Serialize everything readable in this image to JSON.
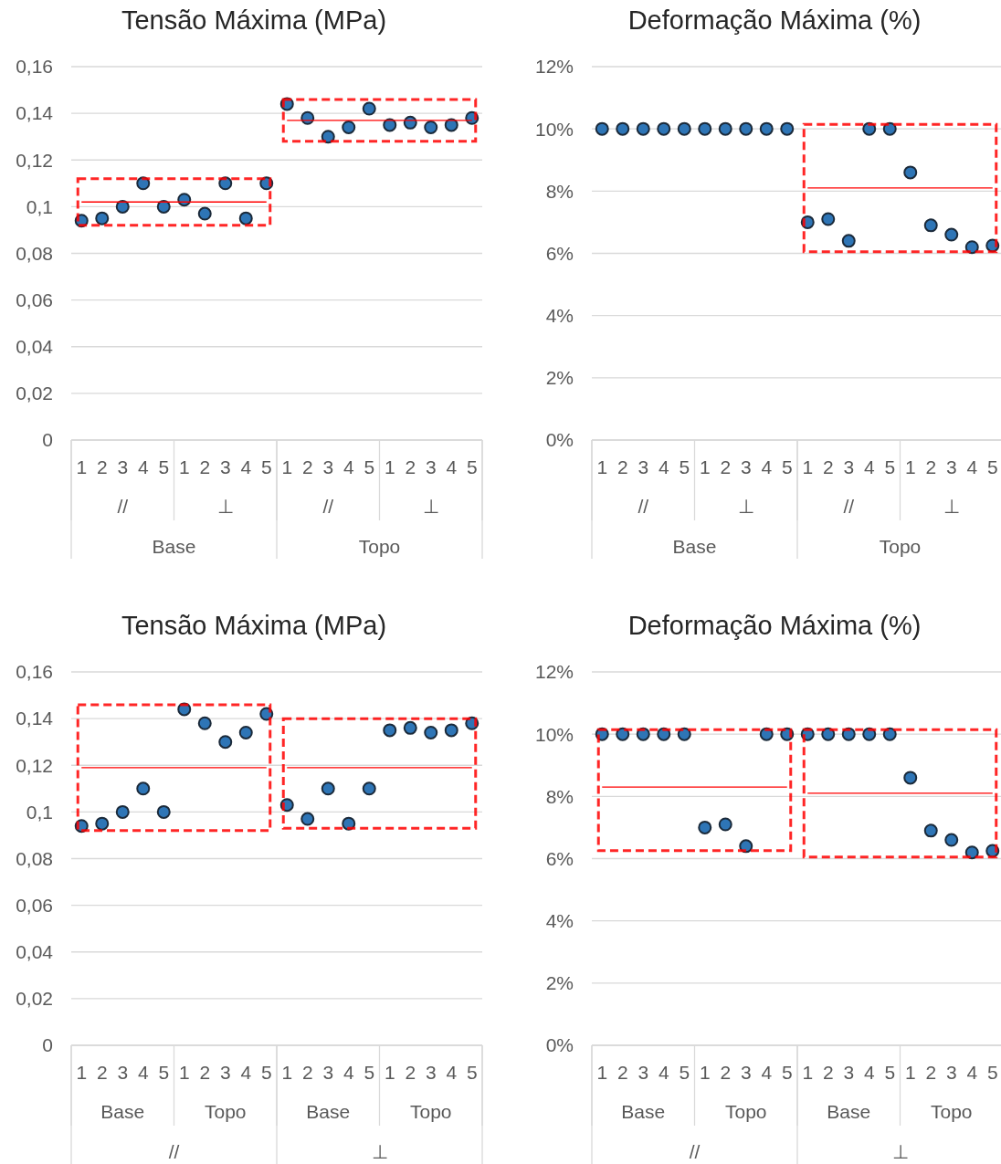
{
  "chart_data": [
    {
      "type": "scatter",
      "title": "Tensão Máxima (MPa)",
      "categories": [
        "1",
        "2",
        "3",
        "4",
        "5",
        "1",
        "2",
        "3",
        "4",
        "5",
        "1",
        "2",
        "3",
        "4",
        "5",
        "1",
        "2",
        "3",
        "4",
        "5"
      ],
      "annotations": [
        "//",
        "⊥",
        "//",
        "⊥",
        "Base",
        "Topo"
      ],
      "ylim": [
        0,
        0.16
      ],
      "yticks": [
        0,
        {
          "value": 0.02,
          "label": "0,02"
        },
        {
          "value": 0.04,
          "label": "0,04"
        },
        {
          "value": 0.06,
          "label": "0,06"
        },
        {
          "value": 0.08,
          "label": "0,08"
        },
        {
          "value": 0.1,
          "label": "0,1"
        },
        {
          "value": 0.12,
          "label": "0,12"
        },
        {
          "value": 0.14,
          "label": "0,14"
        },
        {
          "value": 0.16,
          "label": "0,16"
        }
      ],
      "grid": "y",
      "series": [
        {
          "marker": "circle",
          "color": "#2e75b6",
          "values": [
            0.094,
            0.095,
            0.1,
            0.11,
            0.1,
            0.103,
            0.097,
            0.11,
            0.095,
            0.11,
            0.144,
            0.138,
            0.13,
            0.134,
            0.142,
            0.135,
            0.136,
            0.134,
            0.135,
            0.138
          ]
        },
        {
          "type": "line",
          "marker": "none",
          "color": "#ff0000",
          "values": [
            0.102,
            0.102,
            0.102,
            0.102,
            0.102,
            0.102,
            0.102,
            0.102,
            0.102,
            0.102,
            null,
            null,
            null,
            null,
            null,
            null,
            null,
            null,
            null,
            null
          ]
        },
        {
          "type": "line",
          "marker": "none",
          "color": "#ff0000",
          "values": [
            null,
            null,
            null,
            null,
            null,
            null,
            null,
            null,
            null,
            null,
            0.137,
            0.137,
            0.137,
            0.137,
            0.137,
            0.137,
            0.137,
            0.137,
            0.137,
            0.137
          ]
        }
      ]
    },
    {
      "type": "scatter",
      "title": "Deformação Máxima (%)",
      "categories": [
        "1",
        "2",
        "3",
        "4",
        "5",
        "1",
        "2",
        "3",
        "4",
        "5",
        "1",
        "2",
        "3",
        "4",
        "5",
        "1",
        "2",
        "3",
        "4",
        "5"
      ],
      "annotations": [
        "//",
        "⊥",
        "//",
        "⊥",
        "Base",
        "Topo"
      ],
      "ylim": [
        0,
        12
      ],
      "yticks": [
        {
          "value": 0,
          "label": "0%"
        },
        {
          "value": 2,
          "label": "2%"
        },
        {
          "value": 4,
          "label": "4%"
        },
        {
          "value": 6,
          "label": "6%"
        },
        {
          "value": 8,
          "label": "8%"
        },
        {
          "value": 10,
          "label": "10%"
        },
        {
          "value": 12,
          "label": "12%"
        }
      ],
      "grid": "y",
      "series": [
        {
          "marker": "circle",
          "color": "#2e75b6",
          "values": [
            10,
            10,
            10,
            10,
            10,
            10,
            10,
            10,
            10,
            10,
            7.0,
            7.1,
            6.4,
            10,
            10,
            8.6,
            6.9,
            6.6,
            6.2,
            6.25
          ]
        },
        {
          "type": "line",
          "marker": "none",
          "color": "#ff0000",
          "values": [
            null,
            null,
            null,
            null,
            null,
            null,
            null,
            null,
            null,
            null,
            8.1,
            8.1,
            8.1,
            8.1,
            8.1,
            8.1,
            8.1,
            8.1,
            8.1,
            8.1
          ]
        }
      ]
    },
    {
      "type": "scatter",
      "title": "Tensão Máxima (MPa)",
      "categories": [
        "1",
        "2",
        "3",
        "4",
        "5",
        "1",
        "2",
        "3",
        "4",
        "5",
        "1",
        "2",
        "3",
        "4",
        "5",
        "1",
        "2",
        "3",
        "4",
        "5"
      ],
      "annotations": [
        "Base",
        "Topo",
        "Base",
        "Topo",
        "//",
        "⊥"
      ],
      "ylim": [
        0,
        0.16
      ],
      "yticks": [
        0,
        {
          "value": 0.02,
          "label": "0,02"
        },
        {
          "value": 0.04,
          "label": "0,04"
        },
        {
          "value": 0.06,
          "label": "0,06"
        },
        {
          "value": 0.08,
          "label": "0,08"
        },
        {
          "value": 0.1,
          "label": "0,1"
        },
        {
          "value": 0.12,
          "label": "0,12"
        },
        {
          "value": 0.14,
          "label": "0,14"
        },
        {
          "value": 0.16,
          "label": "0,16"
        }
      ],
      "grid": "y",
      "series": [
        {
          "marker": "circle",
          "color": "#2e75b6",
          "values": [
            0.094,
            0.095,
            0.1,
            0.11,
            0.1,
            0.144,
            0.138,
            0.13,
            0.134,
            0.142,
            0.103,
            0.097,
            0.11,
            0.095,
            0.11,
            0.135,
            0.136,
            0.134,
            0.135,
            0.138
          ]
        },
        {
          "type": "line",
          "marker": "none",
          "color": "#ff0000",
          "values": [
            0.119,
            0.119,
            0.119,
            0.119,
            0.119,
            0.119,
            0.119,
            0.119,
            0.119,
            0.119,
            null,
            null,
            null,
            null,
            null,
            null,
            null,
            null,
            null,
            null
          ]
        },
        {
          "type": "line",
          "marker": "none",
          "color": "#ff0000",
          "values": [
            null,
            null,
            null,
            null,
            null,
            null,
            null,
            null,
            null,
            null,
            0.119,
            0.119,
            0.119,
            0.119,
            0.119,
            0.119,
            0.119,
            0.119,
            0.119,
            0.119
          ]
        }
      ]
    },
    {
      "type": "scatter",
      "title": "Deformação Máxima (%)",
      "categories": [
        "1",
        "2",
        "3",
        "4",
        "5",
        "1",
        "2",
        "3",
        "4",
        "5",
        "1",
        "2",
        "3",
        "4",
        "5",
        "1",
        "2",
        "3",
        "4",
        "5"
      ],
      "annotations": [
        "Base",
        "Topo",
        "Base",
        "Topo",
        "//",
        "⊥"
      ],
      "ylim": [
        0,
        12
      ],
      "yticks": [
        {
          "value": 0,
          "label": "0%"
        },
        {
          "value": 2,
          "label": "2%"
        },
        {
          "value": 4,
          "label": "4%"
        },
        {
          "value": 6,
          "label": "6%"
        },
        {
          "value": 8,
          "label": "8%"
        },
        {
          "value": 10,
          "label": "10%"
        },
        {
          "value": 12,
          "label": "12%"
        }
      ],
      "grid": "y",
      "series": [
        {
          "marker": "circle",
          "color": "#2e75b6",
          "values": [
            10,
            10,
            10,
            10,
            10,
            7.0,
            7.1,
            6.4,
            10,
            10,
            10,
            10,
            10,
            10,
            10,
            8.6,
            6.9,
            6.6,
            6.2,
            6.25
          ]
        },
        {
          "type": "line",
          "marker": "none",
          "color": "#ff0000",
          "values": [
            8.3,
            8.3,
            8.3,
            8.3,
            8.3,
            8.3,
            8.3,
            8.3,
            8.3,
            8.3,
            null,
            null,
            null,
            null,
            null,
            null,
            null,
            null,
            null,
            null
          ]
        },
        {
          "type": "line",
          "marker": "none",
          "color": "#ff0000",
          "values": [
            null,
            null,
            null,
            null,
            null,
            null,
            null,
            null,
            null,
            null,
            8.1,
            8.1,
            8.1,
            8.1,
            8.1,
            8.1,
            8.1,
            8.1,
            8.1,
            8.1
          ]
        }
      ]
    }
  ]
}
